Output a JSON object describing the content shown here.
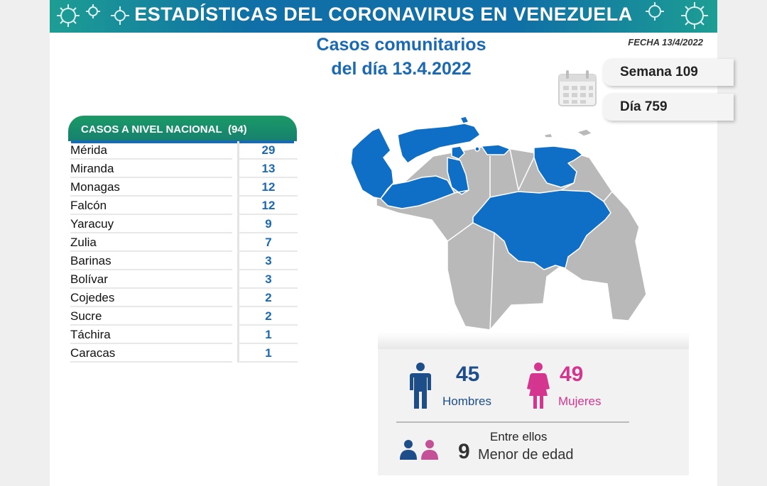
{
  "banner": {
    "title": "ESTADÍSTICAS DEL CORONAVIRUS EN VENEZUELA"
  },
  "header": {
    "fecha": "FECHA 13/4/2022",
    "subtitle_line1": "Casos comunitarios",
    "subtitle_line2": "del día 13.4.2022",
    "semana": "Semana 109",
    "dia": "Día 759"
  },
  "table": {
    "title": "CASOS A NIVEL NACIONAL",
    "total": "(94)",
    "rows": [
      {
        "name": "Mérida",
        "value": "29"
      },
      {
        "name": "Miranda",
        "value": "13"
      },
      {
        "name": "Monagas",
        "value": "12"
      },
      {
        "name": "Falcón",
        "value": "12"
      },
      {
        "name": "Yaracuy",
        "value": "9"
      },
      {
        "name": "Zulia",
        "value": "7"
      },
      {
        "name": "Barinas",
        "value": "3"
      },
      {
        "name": "Bolívar",
        "value": "3"
      },
      {
        "name": "Cojedes",
        "value": "2"
      },
      {
        "name": "Sucre",
        "value": "2"
      },
      {
        "name": "Táchira",
        "value": "1"
      },
      {
        "name": "Caracas",
        "value": "1"
      }
    ]
  },
  "stats": {
    "hombres_count": "45",
    "hombres_label": "Hombres",
    "mujeres_count": "49",
    "mujeres_label": "Mujeres",
    "entre_ellos": "Entre ellos",
    "menor_count": "9",
    "menor_label": "Menor de edad"
  },
  "colors": {
    "accent_blue": "#1a69b3",
    "map_highlight": "#0f6fc6",
    "map_gray": "#b9b9b9",
    "male": "#1d4e89",
    "female": "#d4368f",
    "header_green": "#1a9a66"
  },
  "icons": [
    "virus-icon",
    "calendar-icon",
    "male-figure-icon",
    "female-figure-icon",
    "children-icon"
  ]
}
